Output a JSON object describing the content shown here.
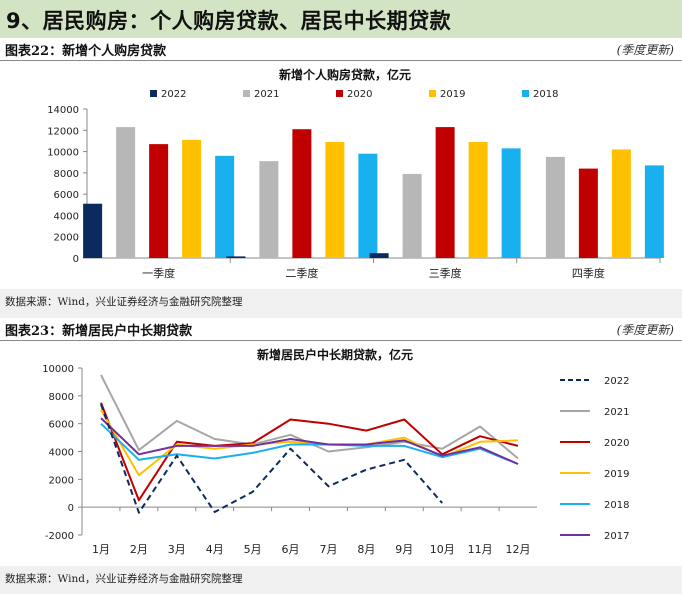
{
  "banner": {
    "title": "9、居民购房：个人购房贷款、居民中长期贷款"
  },
  "figure1": {
    "label": "图表22：新增个人购房贷款",
    "update": "(季度更新)",
    "source": "数据来源：Wind，兴业证券经济与金融研究院整理"
  },
  "figure2": {
    "label": "图表23：新增居民户中长期贷款",
    "update": "(季度更新)",
    "source": "数据来源：Wind，兴业证券经济与金融研究院整理"
  },
  "chart_data": [
    {
      "type": "bar",
      "title": "新增个人购房贷款，亿元",
      "categories": [
        "一季度",
        "二季度",
        "三季度",
        "四季度"
      ],
      "ylim": [
        0,
        14000
      ],
      "yticks": [
        0,
        2000,
        4000,
        6000,
        8000,
        10000,
        12000,
        14000
      ],
      "legend": "top",
      "grid": false,
      "series": [
        {
          "name": "2022",
          "color": "#0b2a5e",
          "values": [
            5100,
            150,
            450,
            null
          ]
        },
        {
          "name": "2021",
          "color": "#b7b7b7",
          "values": [
            12300,
            9100,
            7900,
            9500
          ]
        },
        {
          "name": "2020",
          "color": "#c00000",
          "values": [
            10700,
            12100,
            12300,
            8400
          ]
        },
        {
          "name": "2019",
          "color": "#ffc000",
          "values": [
            11100,
            10900,
            10900,
            10200
          ]
        },
        {
          "name": "2018",
          "color": "#19b0f0",
          "values": [
            9600,
            9800,
            10300,
            8700
          ]
        }
      ]
    },
    {
      "type": "line",
      "title": "新增居民户中长期贷款，亿元",
      "categories": [
        "1月",
        "2月",
        "3月",
        "4月",
        "5月",
        "6月",
        "7月",
        "8月",
        "9月",
        "10月",
        "11月",
        "12月"
      ],
      "ylim": [
        -2000,
        10000
      ],
      "yticks": [
        -2000,
        0,
        2000,
        4000,
        6000,
        8000,
        10000
      ],
      "legend": "right",
      "grid": false,
      "series": [
        {
          "name": "2022",
          "color": "#0b2a5e",
          "dashed": true,
          "values": [
            7400,
            -400,
            3700,
            -350,
            1100,
            4200,
            1500,
            2700,
            3400,
            300,
            null,
            null
          ]
        },
        {
          "name": "2021",
          "color": "#a6a6a6",
          "values": [
            9500,
            4100,
            6200,
            4900,
            4500,
            5200,
            4000,
            4300,
            4700,
            4200,
            5800,
            3500
          ]
        },
        {
          "name": "2020",
          "color": "#c00000",
          "values": [
            7500,
            500,
            4700,
            4400,
            4600,
            6300,
            6000,
            5500,
            6300,
            3800,
            5100,
            4400
          ]
        },
        {
          "name": "2019",
          "color": "#ffc000",
          "values": [
            7000,
            2300,
            4500,
            4200,
            4500,
            4700,
            4500,
            4500,
            5000,
            3600,
            4700,
            4800
          ]
        },
        {
          "name": "2018",
          "color": "#19b0f0",
          "values": [
            6000,
            3400,
            3800,
            3500,
            3900,
            4500,
            4500,
            4400,
            4400,
            3600,
            4200,
            3100
          ]
        },
        {
          "name": "2017",
          "color": "#7030a0",
          "values": [
            6400,
            3800,
            4400,
            4400,
            4400,
            4900,
            4500,
            4500,
            4800,
            3700,
            4300,
            3100
          ]
        }
      ]
    }
  ]
}
